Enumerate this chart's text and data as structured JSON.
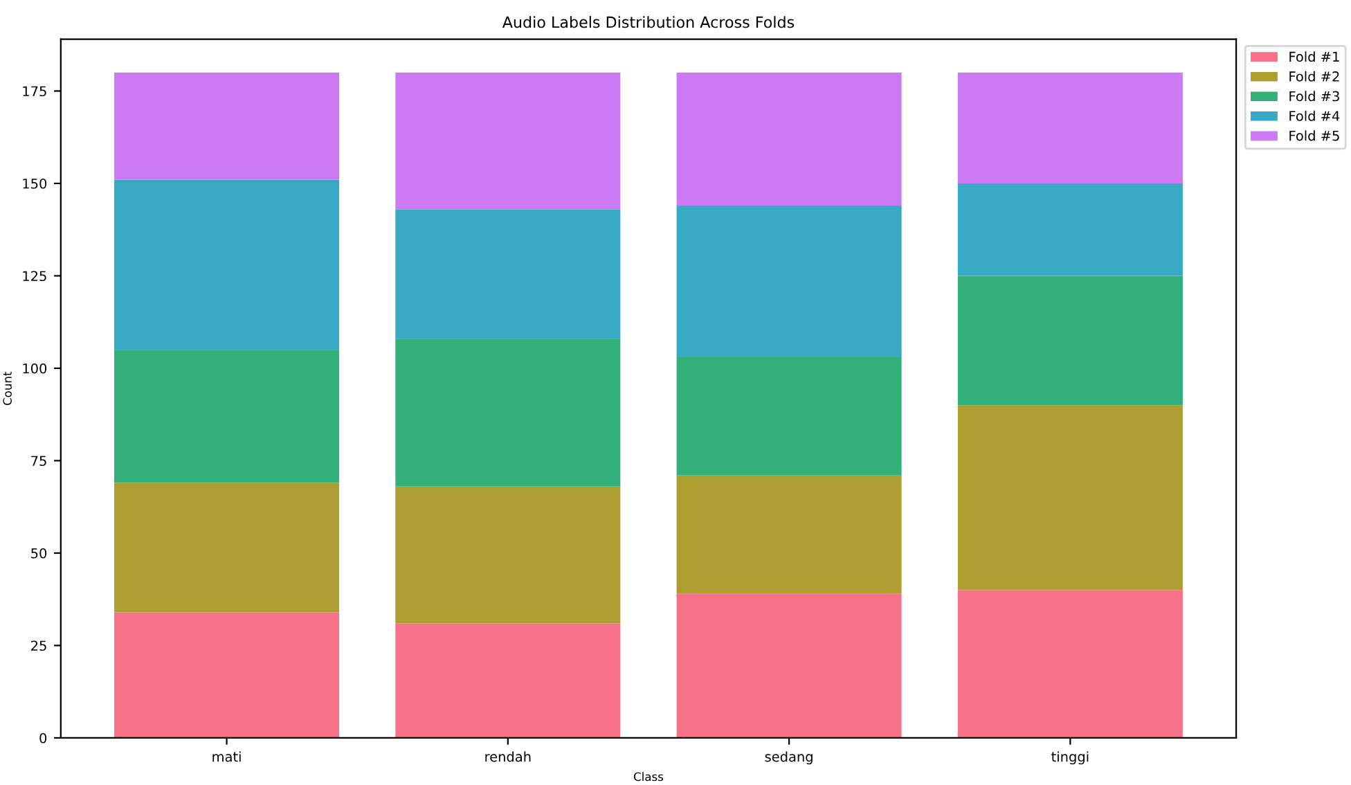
{
  "chart_data": {
    "type": "bar",
    "stacked": true,
    "title": "Audio Labels Distribution Across Folds",
    "xlabel": "Class",
    "ylabel": "Count",
    "categories": [
      "mati",
      "rendah",
      "sedang",
      "tinggi"
    ],
    "series": [
      {
        "name": "Fold #1",
        "color": "#f77189",
        "values": [
          34,
          31,
          39,
          40
        ]
      },
      {
        "name": "Fold #2",
        "color": "#ae9d31",
        "values": [
          35,
          37,
          32,
          50
        ]
      },
      {
        "name": "Fold #3",
        "color": "#33b07a",
        "values": [
          36,
          40,
          32,
          35
        ]
      },
      {
        "name": "Fold #4",
        "color": "#38a9c5",
        "values": [
          46,
          35,
          41,
          25
        ]
      },
      {
        "name": "Fold #5",
        "color": "#cc7af4",
        "values": [
          29,
          37,
          36,
          30
        ]
      }
    ],
    "ylim": [
      0,
      189
    ],
    "yticks": [
      0,
      25,
      50,
      75,
      100,
      125,
      150,
      175
    ],
    "grid": false,
    "legend": "top right"
  }
}
